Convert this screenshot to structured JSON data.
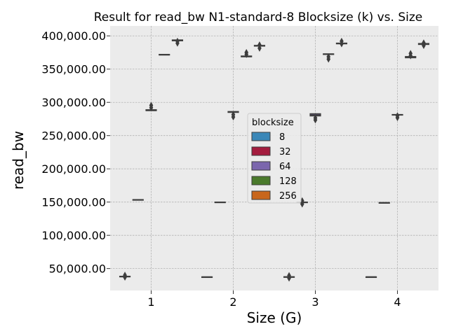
{
  "chart_data": {
    "type": "box",
    "title": "Result for read_bw N1-standard-8 Blocksize (k) vs. Size",
    "xlabel": "Size (G)",
    "ylabel": "read_bw",
    "categories": [
      "1",
      "2",
      "3",
      "4"
    ],
    "ylim": [
      17000,
      415000
    ],
    "yticks": [
      50000,
      100000,
      150000,
      200000,
      250000,
      300000,
      350000,
      400000
    ],
    "ytick_labels": [
      "50,000.00",
      "100,000.00",
      "150,000.00",
      "200,000.00",
      "250,000.00",
      "300,000.00",
      "350,000.00",
      "400,000.00"
    ],
    "grid": true,
    "legend": {
      "title": "blocksize",
      "placement": "center"
    },
    "series": [
      {
        "name": "8",
        "color": "#3a87b8",
        "boxes": [
          {
            "q1": 37500,
            "median": 38000,
            "q3": 38500,
            "outliers": [
              37000,
              40000
            ]
          },
          {
            "q1": 36800,
            "median": 37200,
            "q3": 37600,
            "outliers": []
          },
          {
            "q1": 36800,
            "median": 37300,
            "q3": 37800,
            "outliers": [
              35500,
              39500
            ]
          },
          {
            "q1": 37000,
            "median": 37300,
            "q3": 37600,
            "outliers": []
          }
        ]
      },
      {
        "name": "32",
        "color": "#a41c3e",
        "boxes": [
          {
            "q1": 153000,
            "median": 153400,
            "q3": 153800,
            "outliers": []
          },
          {
            "q1": 149300,
            "median": 149700,
            "q3": 150100,
            "outliers": []
          },
          {
            "q1": 149300,
            "median": 149700,
            "q3": 150100,
            "outliers": [
              147000,
              152000
            ]
          },
          {
            "q1": 148500,
            "median": 148900,
            "q3": 149300,
            "outliers": []
          }
        ]
      },
      {
        "name": "64",
        "color": "#7b66ad",
        "boxes": [
          {
            "q1": 287500,
            "median": 288000,
            "q3": 289000,
            "outliers": [
              292000,
              295500
            ]
          },
          {
            "q1": 284800,
            "median": 285500,
            "q3": 286300,
            "outliers": [
              278000,
              281500
            ]
          },
          {
            "q1": 279500,
            "median": 281000,
            "q3": 283000,
            "outliers": [
              273500,
              276500
            ]
          },
          {
            "q1": 280800,
            "median": 281300,
            "q3": 281800,
            "outliers": [
              277000,
              280000
            ]
          }
        ]
      },
      {
        "name": "128",
        "color": "#4a7a2c",
        "boxes": [
          {
            "q1": 371200,
            "median": 371700,
            "q3": 372200,
            "outliers": []
          },
          {
            "q1": 368500,
            "median": 369000,
            "q3": 369800,
            "outliers": [
              372000,
              375000
            ]
          },
          {
            "q1": 372000,
            "median": 372500,
            "q3": 373000,
            "outliers": [
              365000,
              368500
            ]
          },
          {
            "q1": 367000,
            "median": 368000,
            "q3": 369000,
            "outliers": [
              370000,
              373500
            ]
          }
        ]
      },
      {
        "name": "256",
        "color": "#c8661c",
        "boxes": [
          {
            "q1": 392500,
            "median": 393200,
            "q3": 394000,
            "outliers": [
              389000,
              392000
            ]
          },
          {
            "q1": 384500,
            "median": 385000,
            "q3": 385800,
            "outliers": [
              381500,
              386500
            ]
          },
          {
            "q1": 388000,
            "median": 388600,
            "q3": 389200,
            "outliers": [
              388000,
              392000
            ]
          },
          {
            "q1": 387000,
            "median": 387800,
            "q3": 388600,
            "outliers": [
              385500,
              389500
            ]
          }
        ]
      }
    ]
  }
}
